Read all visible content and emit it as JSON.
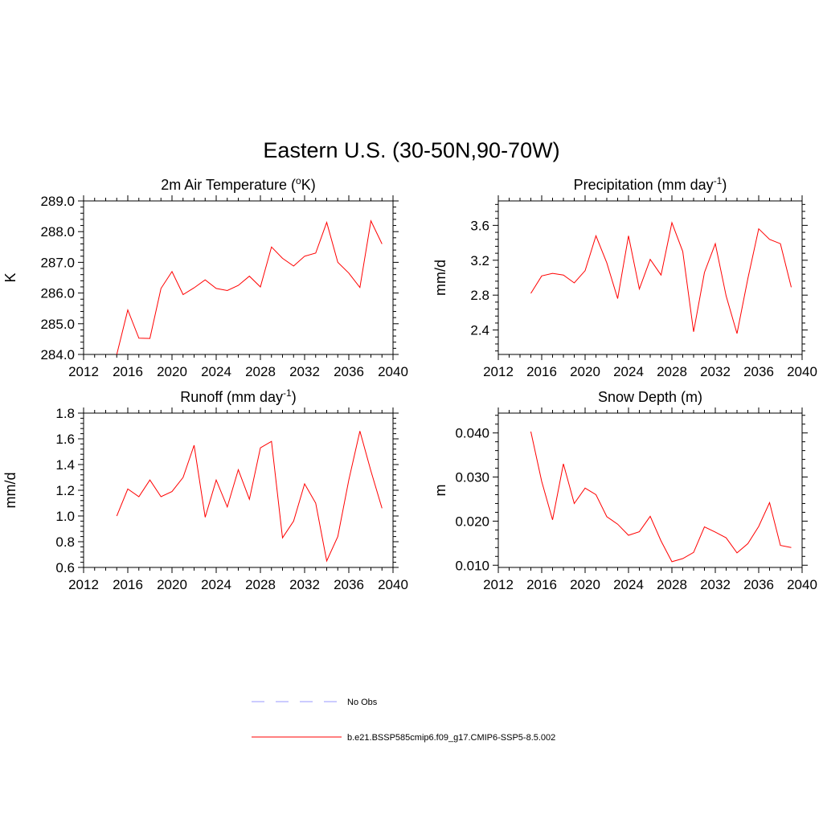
{
  "title": "Eastern U.S. (30-50N,90-70W)",
  "legend": [
    {
      "label": "No Obs",
      "color": "#9999ff",
      "dash": true
    },
    {
      "label": "b.e21.BSSP585cmip6.f09_g17.CMIP6-SSP5-8.5.002",
      "color": "#ff0000",
      "dash": false
    }
  ],
  "chart_data": [
    {
      "type": "line",
      "title": "2m Air Temperature (",
      "title_sup": "o",
      "title_after": "K)",
      "ylabel": "K",
      "xlim": [
        2012,
        2040
      ],
      "ylim": [
        284.0,
        289.0
      ],
      "xticks": [
        2012,
        2016,
        2020,
        2024,
        2028,
        2032,
        2036,
        2040
      ],
      "yticks": [
        284.0,
        285.0,
        286.0,
        287.0,
        288.0,
        289.0
      ],
      "ytick_labels": [
        "284.0",
        "285.0",
        "286.0",
        "287.0",
        "288.0",
        "289.0"
      ],
      "series": [
        {
          "color": "#ff0000",
          "x": [
            2015,
            2016,
            2017,
            2018,
            2019,
            2020,
            2021,
            2022,
            2023,
            2024,
            2025,
            2026,
            2027,
            2028,
            2029,
            2030,
            2031,
            2032,
            2033,
            2034,
            2035,
            2036,
            2037,
            2038,
            2039
          ],
          "values": [
            284.0,
            285.45,
            284.53,
            284.52,
            286.15,
            286.7,
            285.95,
            286.17,
            286.43,
            286.15,
            286.08,
            286.25,
            286.55,
            286.2,
            287.5,
            287.13,
            286.88,
            287.2,
            287.3,
            288.3,
            287.0,
            286.65,
            286.18,
            288.35,
            287.6
          ]
        }
      ]
    },
    {
      "type": "line",
      "title": "Precipitation (mm day",
      "title_sup": "-1",
      "title_after": ")",
      "ylabel": "mm/d",
      "xlim": [
        2012,
        2040
      ],
      "ylim": [
        2.12,
        3.88
      ],
      "xticks": [
        2012,
        2016,
        2020,
        2024,
        2028,
        2032,
        2036,
        2040
      ],
      "yticks": [
        2.4,
        2.8,
        3.2,
        3.6
      ],
      "ytick_labels": [
        "2.4",
        "2.8",
        "3.2",
        "3.6"
      ],
      "series": [
        {
          "color": "#ff0000",
          "x": [
            2015,
            2016,
            2017,
            2018,
            2019,
            2020,
            2021,
            2022,
            2023,
            2024,
            2025,
            2026,
            2027,
            2028,
            2029,
            2030,
            2031,
            2032,
            2033,
            2034,
            2035,
            2036,
            2037,
            2038,
            2039
          ],
          "values": [
            2.82,
            3.02,
            3.05,
            3.03,
            2.94,
            3.08,
            3.48,
            3.17,
            2.76,
            3.48,
            2.87,
            3.21,
            3.03,
            3.63,
            3.3,
            2.38,
            3.06,
            3.39,
            2.79,
            2.36,
            2.99,
            3.56,
            3.44,
            3.39,
            2.89
          ]
        }
      ]
    },
    {
      "type": "line",
      "title": "Runoff (mm day",
      "title_sup": "-1",
      "title_after": ")",
      "ylabel": "mm/d",
      "xlim": [
        2012,
        2040
      ],
      "ylim": [
        0.6,
        1.8
      ],
      "xticks": [
        2012,
        2016,
        2020,
        2024,
        2028,
        2032,
        2036,
        2040
      ],
      "yticks": [
        0.6,
        0.8,
        1.0,
        1.2,
        1.4,
        1.6,
        1.8
      ],
      "ytick_labels": [
        "0.6",
        "0.8",
        "1.0",
        "1.2",
        "1.4",
        "1.6",
        "1.8"
      ],
      "series": [
        {
          "color": "#ff0000",
          "x": [
            2015,
            2016,
            2017,
            2018,
            2019,
            2020,
            2021,
            2022,
            2023,
            2024,
            2025,
            2026,
            2027,
            2028,
            2029,
            2030,
            2031,
            2032,
            2033,
            2034,
            2035,
            2036,
            2037,
            2038,
            2039
          ],
          "values": [
            1.0,
            1.21,
            1.15,
            1.28,
            1.15,
            1.19,
            1.3,
            1.55,
            0.99,
            1.28,
            1.07,
            1.36,
            1.13,
            1.53,
            1.58,
            0.83,
            0.96,
            1.25,
            1.1,
            0.65,
            0.84,
            1.28,
            1.66,
            1.35,
            1.06
          ]
        }
      ]
    },
    {
      "type": "line",
      "title": "Snow Depth (m)",
      "title_sup": "",
      "title_after": "",
      "ylabel": "m",
      "xlim": [
        2012,
        2040
      ],
      "ylim": [
        0.0095,
        0.0445
      ],
      "xticks": [
        2012,
        2016,
        2020,
        2024,
        2028,
        2032,
        2036,
        2040
      ],
      "yticks": [
        0.01,
        0.02,
        0.03,
        0.04
      ],
      "ytick_labels": [
        "0.010",
        "0.020",
        "0.030",
        "0.040"
      ],
      "series": [
        {
          "color": "#ff0000",
          "x": [
            2015,
            2016,
            2017,
            2018,
            2019,
            2020,
            2021,
            2022,
            2023,
            2024,
            2025,
            2026,
            2027,
            2028,
            2029,
            2030,
            2031,
            2032,
            2033,
            2034,
            2035,
            2036,
            2037,
            2038,
            2039
          ],
          "values": [
            0.0403,
            0.029,
            0.0203,
            0.033,
            0.024,
            0.0275,
            0.026,
            0.021,
            0.0193,
            0.0168,
            0.0176,
            0.0211,
            0.0155,
            0.0108,
            0.0115,
            0.0129,
            0.0187,
            0.0175,
            0.0162,
            0.0128,
            0.0149,
            0.0188,
            0.0242,
            0.0145,
            0.014
          ]
        }
      ]
    }
  ]
}
